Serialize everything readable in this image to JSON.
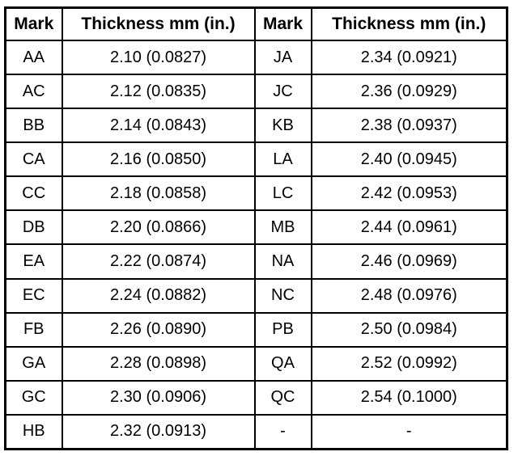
{
  "table": {
    "header": [
      "Mark",
      "Thickness mm (in.)",
      "Mark",
      "Thickness mm (in.)"
    ],
    "rows": [
      [
        "AA",
        "2.10 (0.0827)",
        "JA",
        "2.34 (0.0921)"
      ],
      [
        "AC",
        "2.12 (0.0835)",
        "JC",
        "2.36 (0.0929)"
      ],
      [
        "BB",
        "2.14 (0.0843)",
        "KB",
        "2.38 (0.0937)"
      ],
      [
        "CA",
        "2.16 (0.0850)",
        "LA",
        "2.40 (0.0945)"
      ],
      [
        "CC",
        "2.18 (0.0858)",
        "LC",
        "2.42 (0.0953)"
      ],
      [
        "DB",
        "2.20 (0.0866)",
        "MB",
        "2.44 (0.0961)"
      ],
      [
        "EA",
        "2.22 (0.0874)",
        "NA",
        "2.46 (0.0969)"
      ],
      [
        "EC",
        "2.24 (0.0882)",
        "NC",
        "2.48 (0.0976)"
      ],
      [
        "FB",
        "2.26 (0.0890)",
        "PB",
        "2.50 (0.0984)"
      ],
      [
        "GA",
        "2.28 (0.0898)",
        "QA",
        "2.52 (0.0992)"
      ],
      [
        "GC",
        "2.30 (0.0906)",
        "QC",
        "2.54 (0.1000)"
      ],
      [
        "HB",
        "2.32 (0.0913)",
        "-",
        "-"
      ]
    ]
  }
}
